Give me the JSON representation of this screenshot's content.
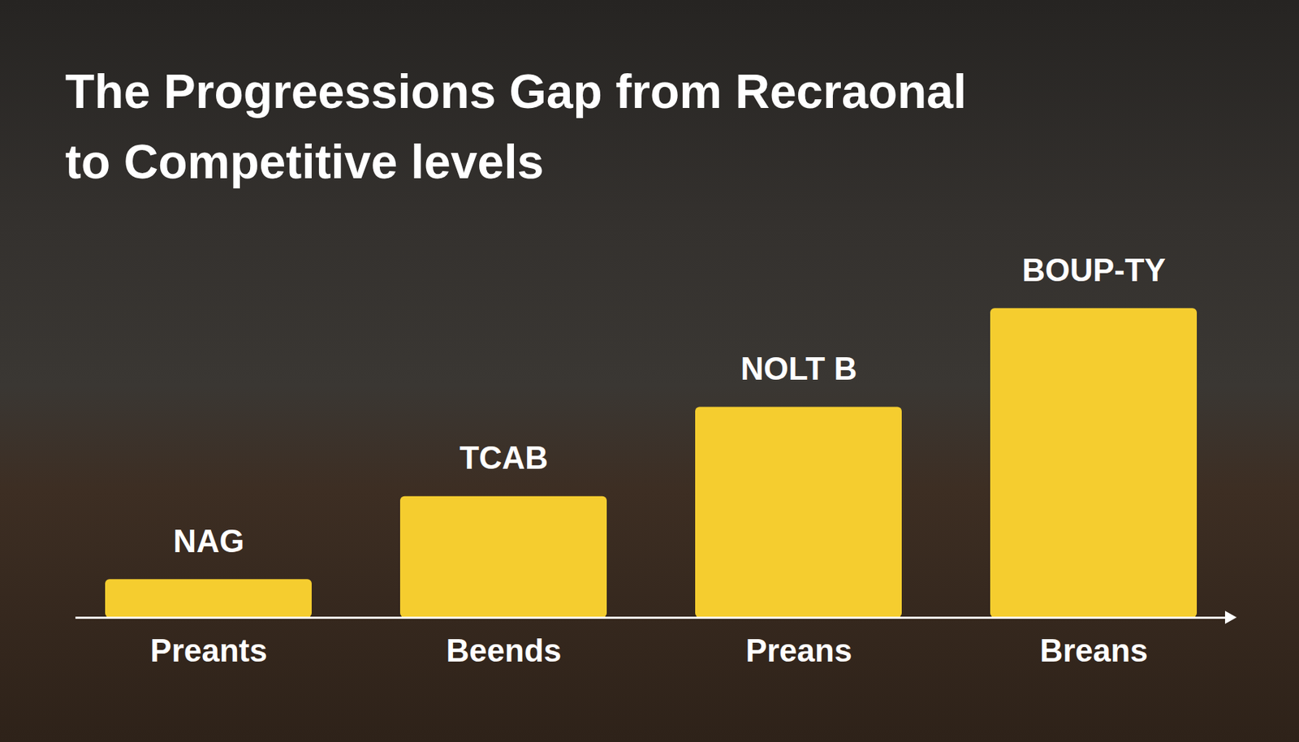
{
  "chart_data": {
    "type": "bar",
    "title": "The Progreessions Gap from Recraonal to Competitive levels",
    "categories": [
      "Preants",
      "Beends",
      "Preans",
      "Breans"
    ],
    "values": [
      12,
      38,
      66,
      97
    ],
    "annotations": [
      "NAG",
      "TCAB",
      "NOLT B",
      "BOUP-TY"
    ],
    "color": "#f5cd2f",
    "ylim": [
      0,
      100
    ],
    "tick_labels": false,
    "grid": false
  }
}
